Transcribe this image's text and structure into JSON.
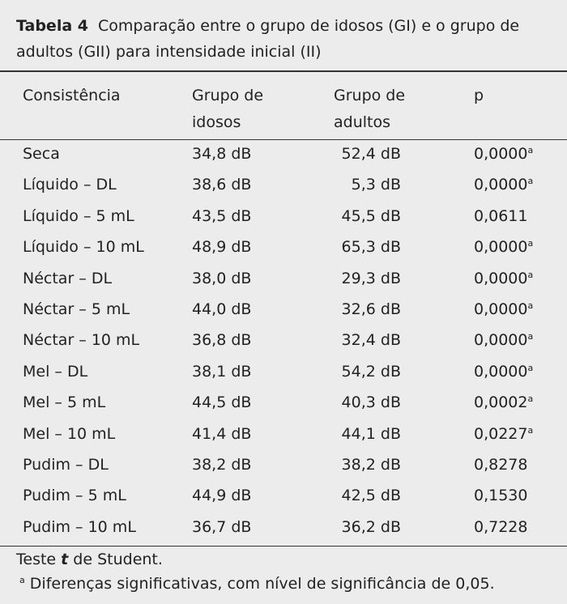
{
  "header": {
    "label": "Tabela 4",
    "title": "Comparação entre o grupo de idosos (GI) e o grupo de adultos (GII) para intensidade inicial (II)"
  },
  "table": {
    "columns": [
      "Consistência",
      "Grupo de idosos",
      "Grupo de adultos",
      "p"
    ],
    "rows": [
      {
        "consistencia": "Seca",
        "idosos": "34,8 dB",
        "adultos": "52,4 dB",
        "p": "0,0000",
        "nota": "a"
      },
      {
        "consistencia": "Líquido – DL",
        "idosos": "38,6 dB",
        "adultos": "5,3 dB",
        "p": "0,0000",
        "nota": "a"
      },
      {
        "consistencia": "Líquido – 5 mL",
        "idosos": "43,5 dB",
        "adultos": "45,5 dB",
        "p": "0,0611"
      },
      {
        "consistencia": "Líquido – 10 mL",
        "idosos": "48,9 dB",
        "adultos": "65,3 dB",
        "p": "0,0000",
        "nota": "a"
      },
      {
        "consistencia": "Néctar – DL",
        "idosos": "38,0 dB",
        "adultos": "29,3 dB",
        "p": "0,0000",
        "nota": "a"
      },
      {
        "consistencia": "Néctar – 5 mL",
        "idosos": "44,0 dB",
        "adultos": "32,6 dB",
        "p": "0,0000",
        "nota": "a"
      },
      {
        "consistencia": "Néctar – 10 mL",
        "idosos": "36,8 dB",
        "adultos": "32,4 dB",
        "p": "0,0000",
        "nota": "a"
      },
      {
        "consistencia": "Mel – DL",
        "idosos": "38,1 dB",
        "adultos": "54,2 dB",
        "p": "0,0000",
        "nota": "a"
      },
      {
        "consistencia": "Mel – 5 mL",
        "idosos": "44,5 dB",
        "adultos": "40,3 dB",
        "p": "0,0002",
        "nota": "a"
      },
      {
        "consistencia": "Mel – 10 mL",
        "idosos": "41,4 dB",
        "adultos": "44,1 dB",
        "p": "0,0227",
        "nota": "a"
      },
      {
        "consistencia": "Pudim – DL",
        "idosos": "38,2 dB",
        "adultos": "38,2 dB",
        "p": "0,8278"
      },
      {
        "consistencia": "Pudim – 5 mL",
        "idosos": "44,9 dB",
        "adultos": "42,5 dB",
        "p": "0,1530"
      },
      {
        "consistencia": "Pudim – 10 mL",
        "idosos": "36,7 dB",
        "adultos": "36,2 dB",
        "p": "0,7228"
      }
    ]
  },
  "footer": {
    "test": [
      "Teste",
      "t",
      "de Student."
    ],
    "note_mark": "a",
    "note": "Diferenças significativas, com nível de significância de 0,05."
  }
}
